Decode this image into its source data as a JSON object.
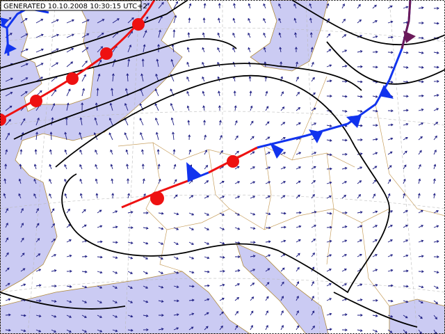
{
  "header": {
    "generated": "GENERATED 10.10.2008 10:30:15 UTC+2"
  }
}
